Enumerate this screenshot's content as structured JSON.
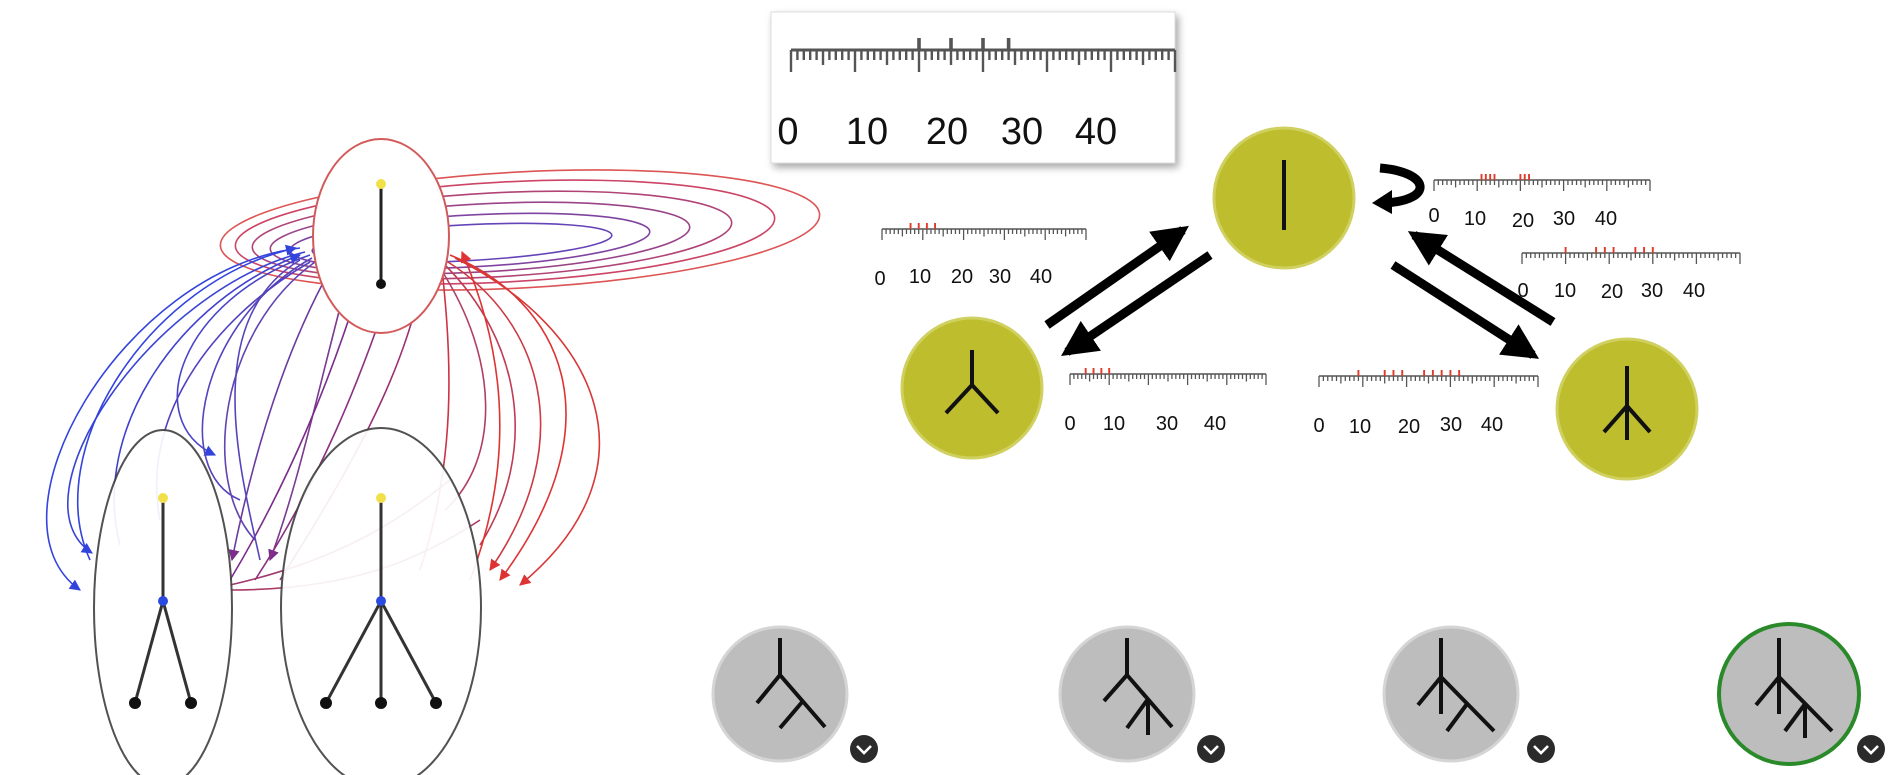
{
  "scale_labels": [
    "0",
    "10",
    "20",
    "30",
    "40"
  ],
  "scale_labels_no20": [
    "0",
    "10",
    "30",
    "40"
  ],
  "colors": {
    "state_fill": "#bdbd2e",
    "state_stroke": "#c8c84a",
    "bottom_fill": "#bdbdbd",
    "bottom_stroke": "#cfcfcf",
    "selected_ring": "#2a8a2a",
    "tick_mark": "#e03a2a",
    "ruler": "#555555",
    "arc_blue": "#3344dd",
    "arc_red": "#dd3333",
    "arc_purple": "#7a2d8a",
    "joint_yellow": "#f1e04a",
    "joint_blue": "#2a4ae0"
  },
  "icons": {
    "expand": "chevron-down-icon"
  }
}
